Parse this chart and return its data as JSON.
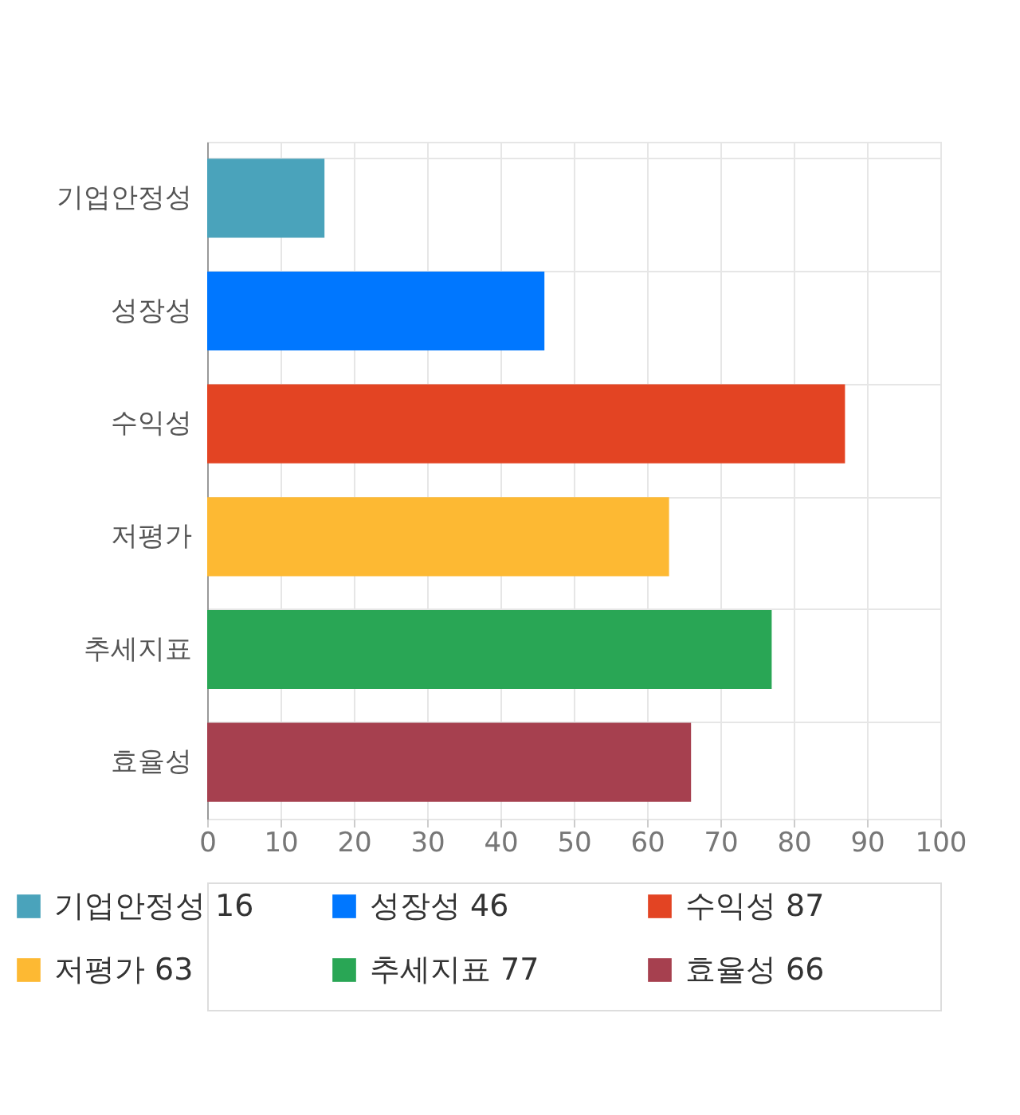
{
  "chart_data": {
    "type": "bar",
    "orientation": "horizontal",
    "categories": [
      "기업안정성",
      "성장성",
      "수익성",
      "저평가",
      "추세지표",
      "효율성"
    ],
    "series": [
      {
        "name": "기업안정성 16",
        "color": "#4aa3bb",
        "values": [
          16,
          null,
          null,
          null,
          null,
          null
        ]
      },
      {
        "name": "성장성 46",
        "color": "#0077ff",
        "values": [
          null,
          46,
          null,
          null,
          null,
          null
        ]
      },
      {
        "name": "수익성 87",
        "color": "#e34423",
        "values": [
          null,
          null,
          87,
          null,
          null,
          null
        ]
      },
      {
        "name": "저평가 63",
        "color": "#fdb933",
        "values": [
          null,
          null,
          null,
          63,
          null,
          null
        ]
      },
      {
        "name": "추세지표 77",
        "color": "#29a655",
        "values": [
          null,
          null,
          null,
          null,
          77,
          null
        ]
      },
      {
        "name": "효율성 66",
        "color": "#a6404f",
        "values": [
          null,
          null,
          null,
          null,
          null,
          66
        ]
      }
    ],
    "xlim": [
      0,
      100
    ],
    "xticks": [
      0,
      10,
      20,
      30,
      40,
      50,
      60,
      70,
      80,
      90,
      100
    ],
    "grid": true,
    "legend": "bottom"
  }
}
